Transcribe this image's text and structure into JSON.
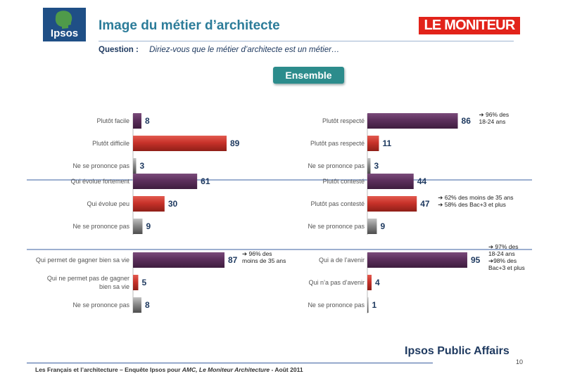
{
  "header": {
    "logo_text": "Ipsos",
    "title": "Image du métier d’architecte",
    "brand": "LE MONITEUR",
    "question_label": "Question :",
    "question_text": "Diriez-vous  que le métier d’architecte est un métier…",
    "segment_button": "Ensemble"
  },
  "colors": {
    "positive": "#5c2f5c",
    "negative": "#c8322a",
    "neutral": "#8a8a8a",
    "value_text": "#1f3a60"
  },
  "chart_data": {
    "type": "bar",
    "orientation": "horizontal",
    "unit": "%",
    "xlim": [
      0,
      100
    ],
    "groups": [
      {
        "column": "left",
        "bars": [
          {
            "label": "Plutôt facile",
            "value": 8,
            "tone": "positive"
          },
          {
            "label": "Plutôt difficile",
            "value": 89,
            "tone": "negative"
          },
          {
            "label": "Ne se prononce pas",
            "value": 3,
            "tone": "neutral"
          }
        ]
      },
      {
        "column": "right",
        "bars": [
          {
            "label": "Plutôt respecté",
            "value": 86,
            "tone": "positive",
            "note": [
              "➔ 96% des",
              "18-24 ans"
            ]
          },
          {
            "label": "Plutôt pas respecté",
            "value": 11,
            "tone": "negative"
          },
          {
            "label": "Ne se prononce pas",
            "value": 3,
            "tone": "neutral"
          }
        ]
      },
      {
        "column": "left",
        "bars": [
          {
            "label": "Qui évolue fortement",
            "value": 61,
            "tone": "positive"
          },
          {
            "label": "Qui évolue peu",
            "value": 30,
            "tone": "negative"
          },
          {
            "label": "Ne se prononce pas",
            "value": 9,
            "tone": "neutral"
          }
        ]
      },
      {
        "column": "right",
        "bars": [
          {
            "label": "Plutôt contesté",
            "value": 44,
            "tone": "positive"
          },
          {
            "label": "Plutôt pas contesté",
            "value": 47,
            "tone": "negative",
            "note": [
              "➔ 62% des moins de 35 ans",
              "➔ 58% des Bac+3 et plus"
            ]
          },
          {
            "label": "Ne se prononce pas",
            "value": 9,
            "tone": "neutral"
          }
        ]
      },
      {
        "column": "left",
        "bars": [
          {
            "label": "Qui permet de gagner bien sa vie",
            "value": 87,
            "tone": "positive",
            "note": [
              "➔ 96% des",
              "moins de 35 ans"
            ]
          },
          {
            "label": [
              "Qui ne permet pas de gagner",
              "bien sa vie"
            ],
            "value": 5,
            "tone": "negative"
          },
          {
            "label": "Ne se prononce pas",
            "value": 8,
            "tone": "neutral"
          }
        ]
      },
      {
        "column": "right",
        "bars": [
          {
            "label": "Qui a de l’avenir",
            "value": 95,
            "tone": "positive",
            "note": [
              "➔ 97% des",
              "18-24 ans",
              "➔98% des",
              "Bac+3 et plus"
            ]
          },
          {
            "label": "Qui n’a pas d’avenir",
            "value": 4,
            "tone": "negative"
          },
          {
            "label": "Ne se prononce pas",
            "value": 1,
            "tone": "neutral"
          }
        ]
      }
    ]
  },
  "footer": {
    "brand": "Ipsos Public Affairs",
    "source_part1": "Les Français et l’architecture – Enquête Ipsos pour ",
    "source_part2": "AMC, Le Moniteur Architecture",
    "source_part3": " - Août 2011",
    "page_number": "10"
  }
}
